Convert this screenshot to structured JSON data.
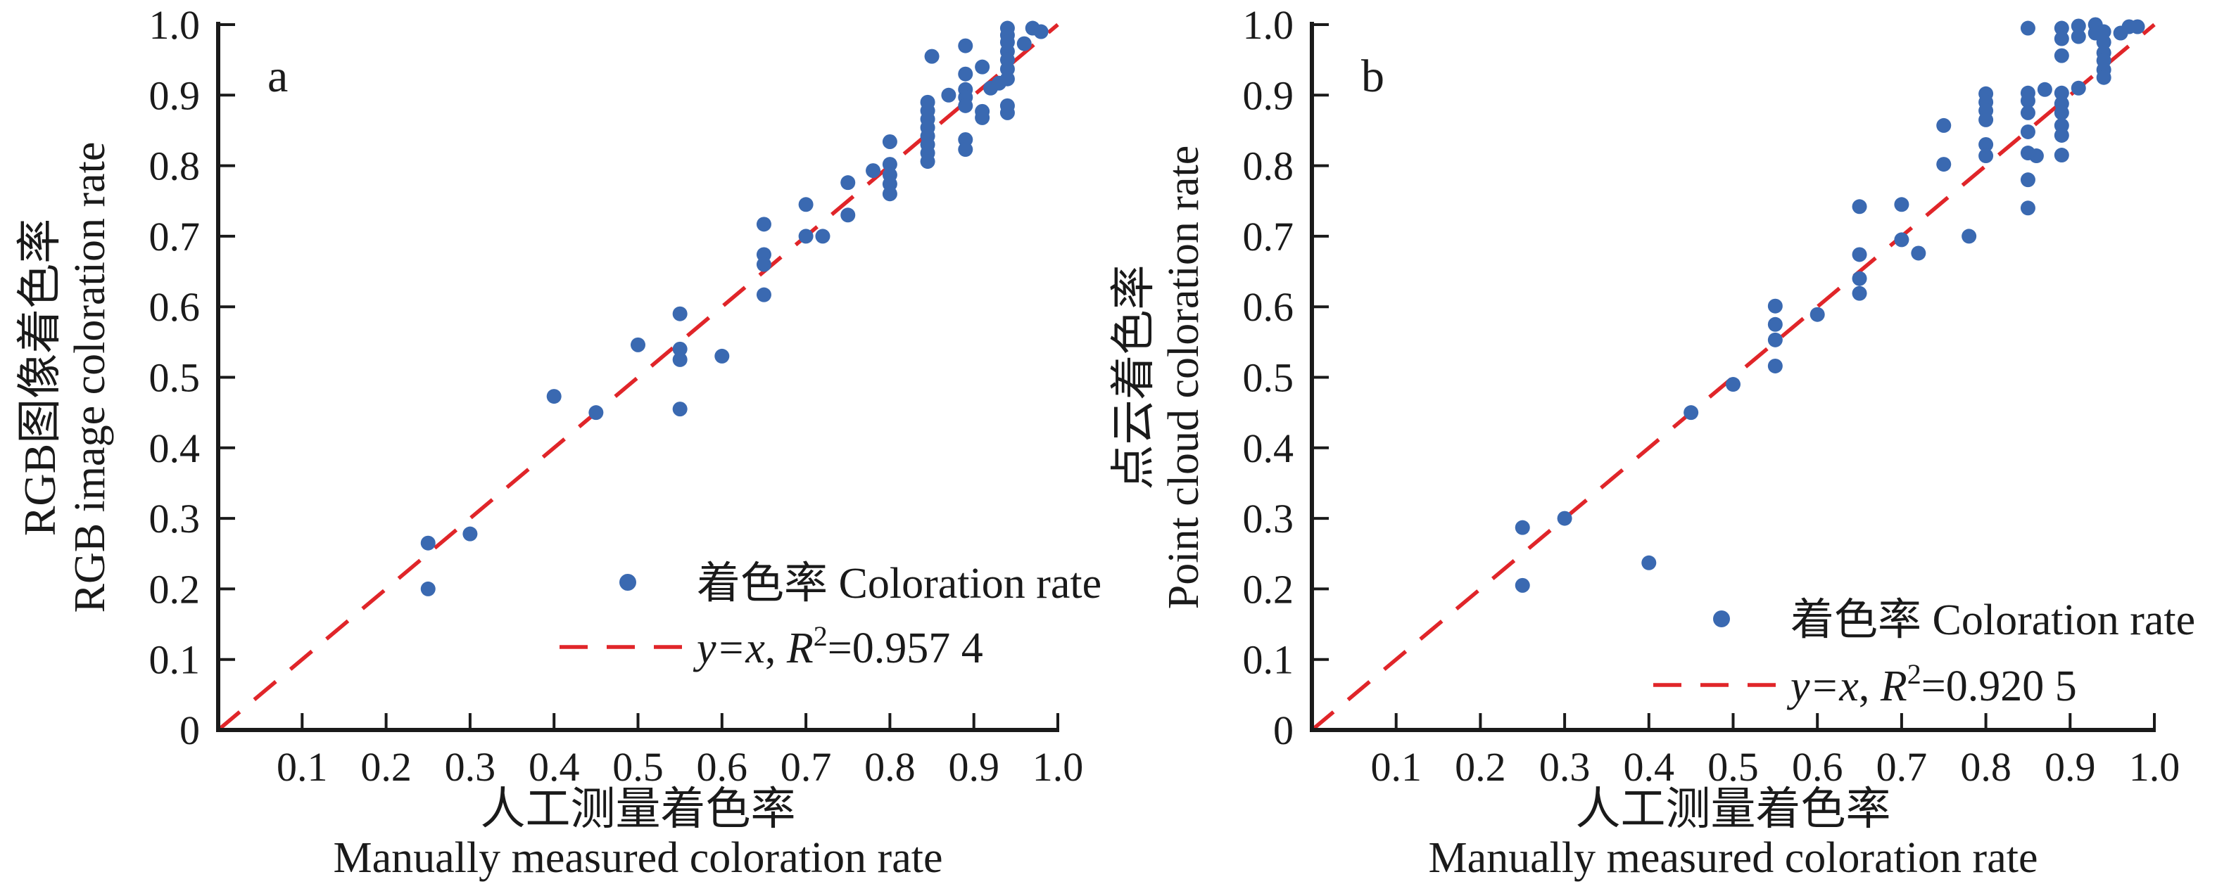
{
  "figure": {
    "description": "Two-panel scatter figure comparing measured coloration rates",
    "colors": {
      "background": "#ffffff",
      "marker": "#3a69b1",
      "identity_line": "#e02529",
      "axis": "#1a1a1a",
      "text": "#1a1a1a"
    }
  },
  "chart_data": [
    {
      "type": "scatter",
      "panel_label": "a",
      "xlabel_cjk": "人工测量着色率",
      "xlabel_en": "Manually measured coloration rate",
      "ylabel_cjk": "RGB图像着色率",
      "ylabel_en": "RGB image coloration rate",
      "xlim": [
        0,
        1.0
      ],
      "ylim": [
        0,
        1.0
      ],
      "xtick_labels": [
        "0.1",
        "0.2",
        "0.3",
        "0.4",
        "0.5",
        "0.6",
        "0.7",
        "0.8",
        "0.9",
        "1.0"
      ],
      "ytick_labels": [
        "0",
        "0.1",
        "0.2",
        "0.3",
        "0.4",
        "0.5",
        "0.6",
        "0.7",
        "0.8",
        "0.9",
        "1.0"
      ],
      "grid": false,
      "identity_line": true,
      "legend_position": "lower right",
      "legend": {
        "marker_label": "着色率 Coloration rate",
        "line_label_italic1": "y=x",
        "line_label_comma": ", ",
        "line_label_italic2": "R",
        "line_label_sup": "2",
        "line_label_rest": "=0.957 4"
      },
      "points": [
        [
          0.25,
          0.265
        ],
        [
          0.25,
          0.2
        ],
        [
          0.3,
          0.278
        ],
        [
          0.4,
          0.473
        ],
        [
          0.45,
          0.45
        ],
        [
          0.5,
          0.546
        ],
        [
          0.55,
          0.59
        ],
        [
          0.55,
          0.54
        ],
        [
          0.55,
          0.525
        ],
        [
          0.55,
          0.455
        ],
        [
          0.6,
          0.53
        ],
        [
          0.65,
          0.717
        ],
        [
          0.65,
          0.674
        ],
        [
          0.65,
          0.66
        ],
        [
          0.65,
          0.617
        ],
        [
          0.7,
          0.745
        ],
        [
          0.7,
          0.7
        ],
        [
          0.72,
          0.7
        ],
        [
          0.75,
          0.776
        ],
        [
          0.75,
          0.73
        ],
        [
          0.78,
          0.793
        ],
        [
          0.8,
          0.834
        ],
        [
          0.8,
          0.802
        ],
        [
          0.8,
          0.787
        ],
        [
          0.8,
          0.774
        ],
        [
          0.8,
          0.76
        ],
        [
          0.845,
          0.89
        ],
        [
          0.845,
          0.878
        ],
        [
          0.845,
          0.866
        ],
        [
          0.845,
          0.854
        ],
        [
          0.845,
          0.842
        ],
        [
          0.845,
          0.83
        ],
        [
          0.845,
          0.818
        ],
        [
          0.845,
          0.806
        ],
        [
          0.85,
          0.955
        ],
        [
          0.87,
          0.9
        ],
        [
          0.89,
          0.97
        ],
        [
          0.89,
          0.93
        ],
        [
          0.89,
          0.908
        ],
        [
          0.89,
          0.897
        ],
        [
          0.89,
          0.885
        ],
        [
          0.89,
          0.837
        ],
        [
          0.89,
          0.823
        ],
        [
          0.91,
          0.94
        ],
        [
          0.91,
          0.877
        ],
        [
          0.91,
          0.868
        ],
        [
          0.92,
          0.91
        ],
        [
          0.93,
          0.917
        ],
        [
          0.94,
          0.995
        ],
        [
          0.94,
          0.985
        ],
        [
          0.94,
          0.975
        ],
        [
          0.94,
          0.962
        ],
        [
          0.94,
          0.95
        ],
        [
          0.94,
          0.937
        ],
        [
          0.94,
          0.923
        ],
        [
          0.94,
          0.885
        ],
        [
          0.94,
          0.875
        ],
        [
          0.96,
          0.973
        ],
        [
          0.97,
          0.995
        ],
        [
          0.98,
          0.99
        ]
      ]
    },
    {
      "type": "scatter",
      "panel_label": "b",
      "xlabel_cjk": "人工测量着色率",
      "xlabel_en": "Manually measured coloration rate",
      "ylabel_cjk": "点云着色率",
      "ylabel_en": "Point cloud coloration rate",
      "xlim": [
        0,
        1.0
      ],
      "ylim": [
        0,
        1.0
      ],
      "xtick_labels": [
        "0.1",
        "0.2",
        "0.3",
        "0.4",
        "0.5",
        "0.6",
        "0.7",
        "0.8",
        "0.9",
        "1.0"
      ],
      "ytick_labels": [
        "0",
        "0.1",
        "0.2",
        "0.3",
        "0.4",
        "0.5",
        "0.6",
        "0.7",
        "0.8",
        "0.9",
        "1.0"
      ],
      "grid": false,
      "identity_line": true,
      "legend_position": "lower right",
      "legend": {
        "marker_label": "着色率 Coloration rate",
        "line_label_italic1": "y=x",
        "line_label_comma": ", ",
        "line_label_italic2": "R",
        "line_label_sup": "2",
        "line_label_rest": "=0.920 5"
      },
      "points": [
        [
          0.25,
          0.287
        ],
        [
          0.25,
          0.205
        ],
        [
          0.3,
          0.3
        ],
        [
          0.4,
          0.237
        ],
        [
          0.45,
          0.45
        ],
        [
          0.5,
          0.49
        ],
        [
          0.55,
          0.601
        ],
        [
          0.55,
          0.575
        ],
        [
          0.55,
          0.553
        ],
        [
          0.55,
          0.516
        ],
        [
          0.6,
          0.589
        ],
        [
          0.65,
          0.742
        ],
        [
          0.65,
          0.674
        ],
        [
          0.65,
          0.64
        ],
        [
          0.65,
          0.619
        ],
        [
          0.7,
          0.745
        ],
        [
          0.7,
          0.695
        ],
        [
          0.72,
          0.676
        ],
        [
          0.75,
          0.857
        ],
        [
          0.75,
          0.802
        ],
        [
          0.78,
          0.7
        ],
        [
          0.8,
          0.902
        ],
        [
          0.8,
          0.89
        ],
        [
          0.8,
          0.878
        ],
        [
          0.8,
          0.865
        ],
        [
          0.8,
          0.83
        ],
        [
          0.8,
          0.814
        ],
        [
          0.85,
          0.995
        ],
        [
          0.85,
          0.903
        ],
        [
          0.85,
          0.892
        ],
        [
          0.85,
          0.875
        ],
        [
          0.85,
          0.848
        ],
        [
          0.85,
          0.818
        ],
        [
          0.85,
          0.78
        ],
        [
          0.85,
          0.74
        ],
        [
          0.86,
          0.814
        ],
        [
          0.87,
          0.908
        ],
        [
          0.89,
          0.995
        ],
        [
          0.89,
          0.98
        ],
        [
          0.89,
          0.956
        ],
        [
          0.89,
          0.903
        ],
        [
          0.89,
          0.888
        ],
        [
          0.89,
          0.875
        ],
        [
          0.89,
          0.857
        ],
        [
          0.89,
          0.843
        ],
        [
          0.89,
          0.815
        ],
        [
          0.91,
          0.998
        ],
        [
          0.91,
          0.983
        ],
        [
          0.91,
          0.91
        ],
        [
          0.93,
          1.0
        ],
        [
          0.93,
          0.988
        ],
        [
          0.94,
          0.99
        ],
        [
          0.94,
          0.975
        ],
        [
          0.94,
          0.96
        ],
        [
          0.94,
          0.949
        ],
        [
          0.94,
          0.936
        ],
        [
          0.94,
          0.925
        ],
        [
          0.96,
          0.988
        ],
        [
          0.97,
          0.997
        ],
        [
          0.98,
          0.997
        ]
      ]
    }
  ]
}
